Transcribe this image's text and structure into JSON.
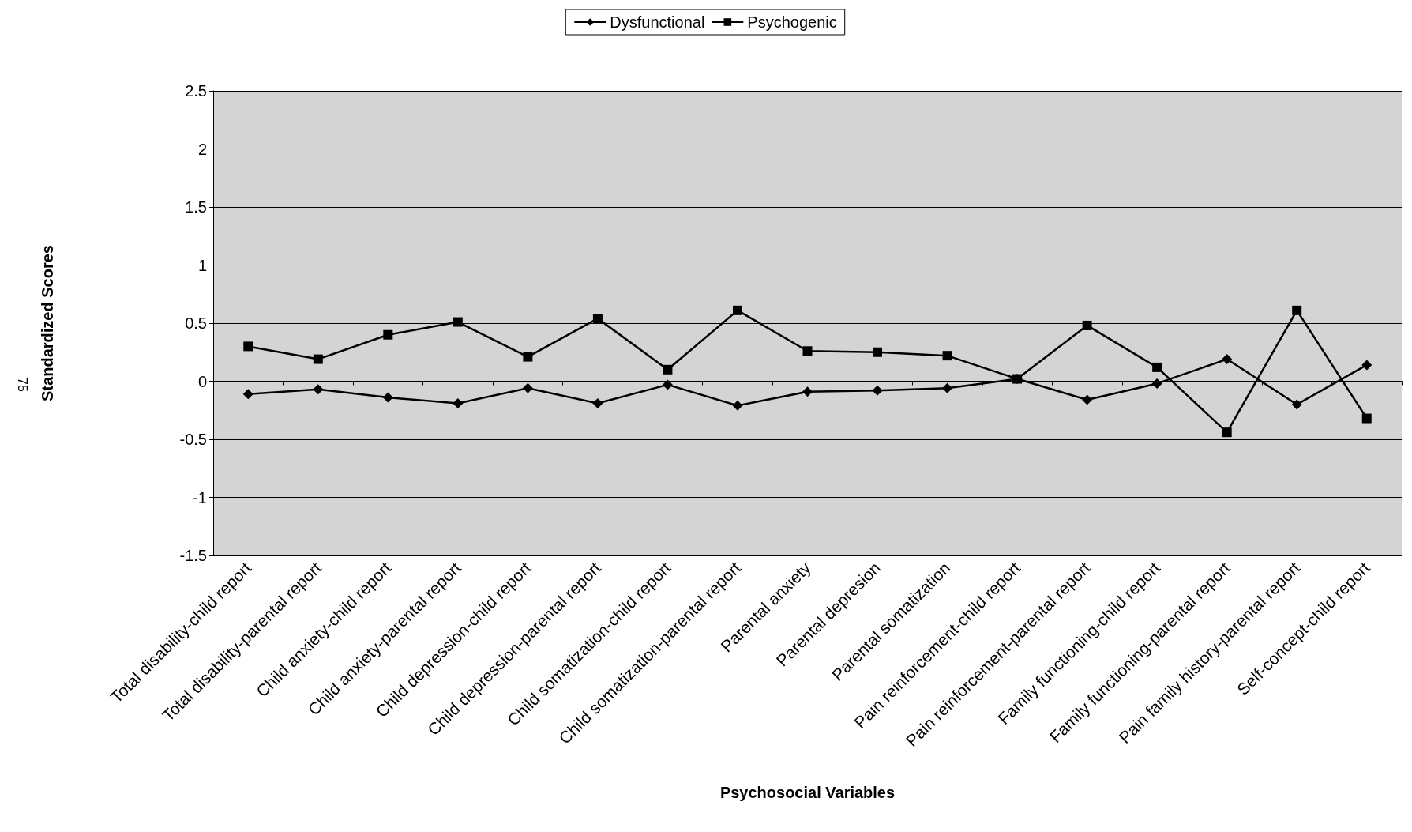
{
  "chart_data": {
    "type": "line",
    "xlabel": "Psychosocial Variables",
    "ylabel": "Standardized Scores",
    "annotations": [
      "75"
    ],
    "categories": [
      "Total disability-child report",
      "Total disability-parental report",
      "Child anxiety-child report",
      "Child anxiety-parental report",
      "Child depression-child report",
      "Child depression-parental report",
      "Child somatization-child report",
      "Child somatization-parental report",
      "Parental anxiety",
      "Parental depresion",
      "Parental somatization",
      "Pain reinforcement-child report",
      "Pain reinforcement-parental report",
      "Family functioning-child report",
      "Family functioning-parental report",
      "Pain family history-parental report",
      "Self-concept-child report"
    ],
    "series": [
      {
        "name": "Dysfunctional",
        "color": "#000000",
        "marker": "diamond",
        "values": [
          -0.11,
          -0.07,
          -0.14,
          -0.19,
          -0.06,
          -0.19,
          -0.03,
          -0.21,
          -0.09,
          -0.08,
          -0.06,
          0.02,
          -0.16,
          -0.02,
          0.19,
          -0.2,
          0.14
        ]
      },
      {
        "name": "Psychogenic",
        "color": "#000000",
        "marker": "square",
        "values": [
          0.3,
          0.19,
          0.4,
          0.51,
          0.21,
          0.54,
          0.1,
          0.61,
          0.26,
          0.25,
          0.22,
          0.02,
          0.48,
          0.12,
          -0.44,
          0.61,
          -0.32
        ]
      }
    ],
    "ylim": [
      -1.5,
      2.5
    ],
    "yticks": [
      -1.5,
      -1,
      -0.5,
      0,
      0.5,
      1,
      1.5,
      2,
      2.5
    ],
    "grid": "y",
    "legend": "top",
    "line_style": "solid"
  }
}
